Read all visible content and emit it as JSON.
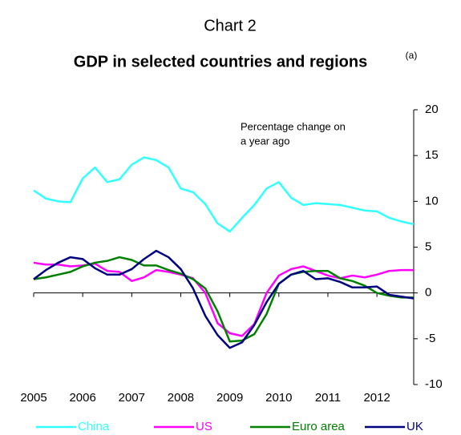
{
  "chart_data": {
    "type": "line",
    "title": "Chart 2",
    "subtitle": "GDP in selected countries and regions",
    "subtitle_note": "(a)",
    "ylabel_lines": [
      "Percentage change on",
      "a year ago"
    ],
    "x": [
      2005,
      2005.25,
      2005.5,
      2005.75,
      2006,
      2006.25,
      2006.5,
      2006.75,
      2007,
      2007.25,
      2007.5,
      2007.75,
      2008,
      2008.25,
      2008.5,
      2008.75,
      2009,
      2009.25,
      2009.5,
      2009.75,
      2010,
      2010.25,
      2010.5,
      2010.75,
      2011,
      2011.25,
      2011.5,
      2011.75,
      2012,
      2012.25,
      2012.5,
      2012.75
    ],
    "xlim": [
      2005,
      2012.75
    ],
    "xticks": [
      2005,
      2006,
      2007,
      2008,
      2009,
      2010,
      2011,
      2012
    ],
    "ylim": [
      -10,
      20
    ],
    "yticks": [
      -10,
      -5,
      0,
      5,
      10,
      15,
      20
    ],
    "series": [
      {
        "name": "China",
        "color": "#33ffff",
        "values": [
          11.2,
          10.3,
          10.0,
          9.9,
          12.5,
          13.7,
          12.1,
          12.4,
          14.0,
          14.8,
          14.5,
          13.7,
          11.4,
          11.0,
          9.7,
          7.6,
          6.7,
          8.2,
          9.6,
          11.4,
          12.1,
          10.4,
          9.6,
          9.8,
          9.7,
          9.6,
          9.3,
          9.0,
          8.9,
          8.2,
          7.8,
          7.5
        ]
      },
      {
        "name": "US",
        "color": "#ff00ff",
        "values": [
          3.3,
          3.1,
          3.1,
          2.9,
          3.0,
          3.2,
          2.4,
          2.3,
          1.3,
          1.7,
          2.5,
          2.3,
          2.0,
          1.6,
          0.0,
          -3.3,
          -4.4,
          -4.7,
          -3.4,
          0.0,
          1.9,
          2.6,
          2.9,
          2.4,
          1.9,
          1.6,
          1.9,
          1.7,
          2.0,
          2.4,
          2.5,
          2.5
        ]
      },
      {
        "name": "Euro area",
        "color": "#008000",
        "values": [
          1.5,
          1.7,
          2.0,
          2.3,
          2.9,
          3.3,
          3.5,
          3.9,
          3.6,
          3.0,
          3.0,
          2.5,
          2.1,
          1.5,
          0.5,
          -2.0,
          -5.3,
          -5.2,
          -4.5,
          -2.3,
          1.0,
          2.0,
          2.3,
          2.4,
          2.4,
          1.6,
          1.3,
          0.8,
          0.0,
          -0.3,
          -0.5,
          -0.5
        ]
      },
      {
        "name": "UK",
        "color": "#000080",
        "values": [
          1.5,
          2.5,
          3.3,
          3.9,
          3.7,
          2.7,
          2.0,
          2.0,
          2.6,
          3.7,
          4.6,
          3.9,
          2.6,
          0.5,
          -2.5,
          -4.6,
          -6.0,
          -5.4,
          -3.5,
          -1.0,
          1.0,
          2.0,
          2.4,
          1.5,
          1.6,
          1.2,
          0.6,
          0.6,
          0.7,
          -0.2,
          -0.4,
          -0.6
        ]
      }
    ]
  }
}
